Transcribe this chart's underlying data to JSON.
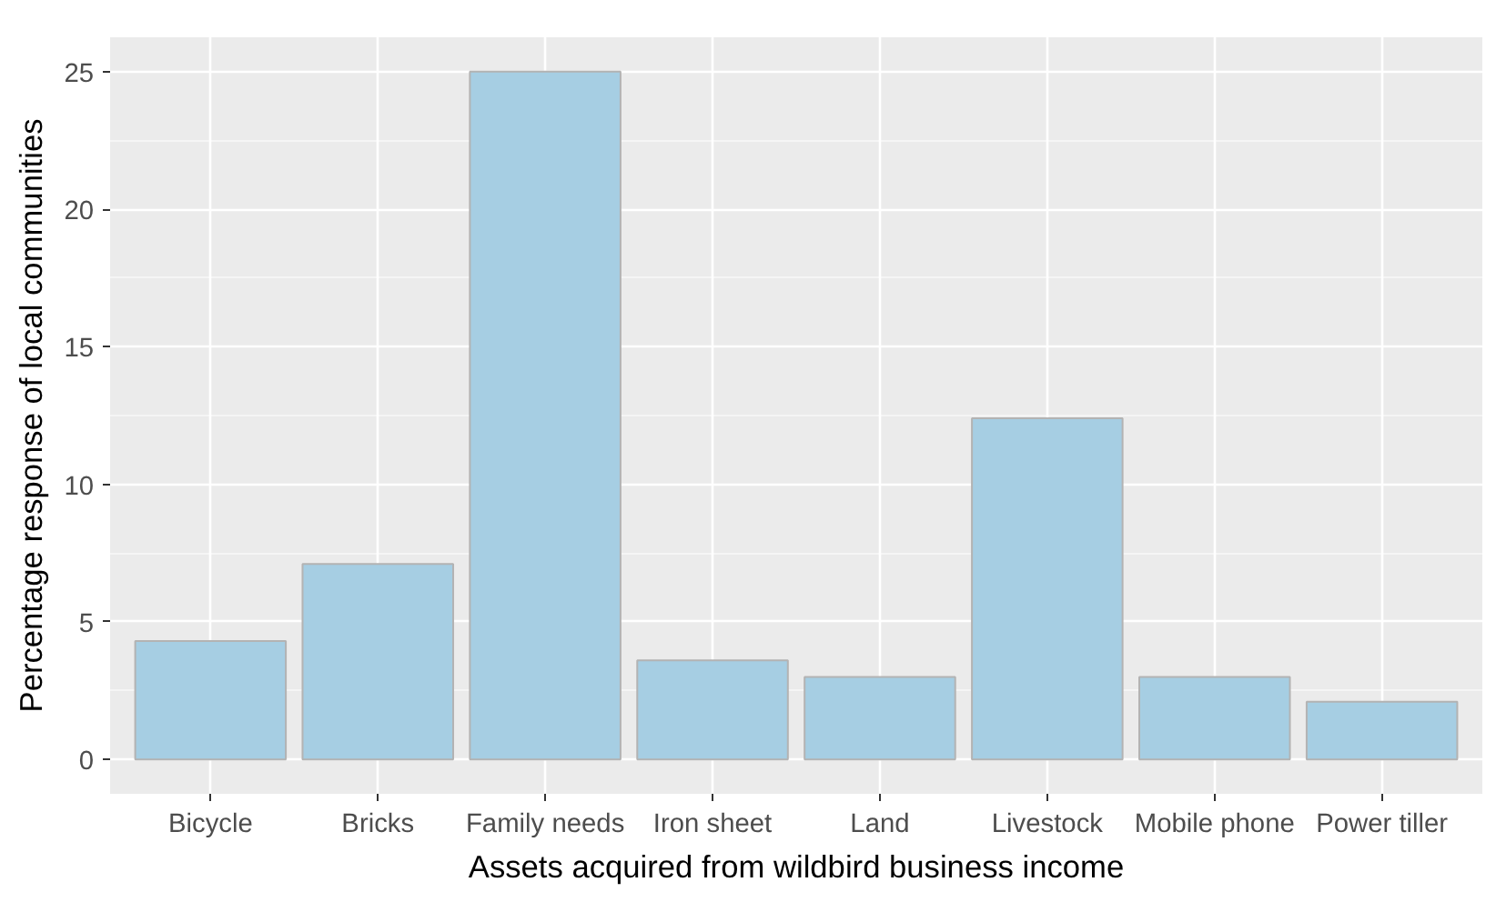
{
  "chart_data": {
    "type": "bar",
    "xlabel": "Assets acquired from wildbird business income",
    "ylabel": "Percentage response of local communities",
    "categories": [
      "Bicycle",
      "Bricks",
      "Family needs",
      "Iron sheet",
      "Land",
      "Livestock",
      "Mobile phone",
      "Power tiller"
    ],
    "values": [
      4.3,
      7.1,
      25,
      3.6,
      3.0,
      12.4,
      3.0,
      2.1
    ],
    "color": "#a6cee3",
    "ylim": [
      -1.25,
      26.25
    ],
    "yticks": [
      0,
      5,
      10,
      15,
      20,
      25
    ],
    "grid": true
  }
}
